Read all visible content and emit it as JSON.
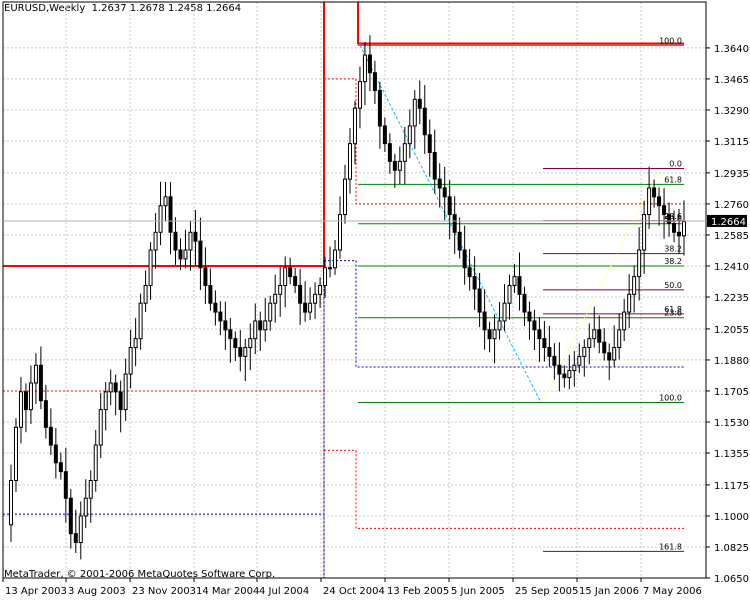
{
  "header": {
    "symbol": "EURUSD",
    "timeframe": "Weekly",
    "open": "1.2637",
    "high": "1.2678",
    "low": "1.2458",
    "close": "1.2664"
  },
  "footer": {
    "copyright": "MetaTrader, © 2001-2006 MetaQuotes Software Corp."
  },
  "colors": {
    "background": "#ffffff",
    "grid": "#c8c8c8",
    "candle": "#000000",
    "price_tag": "#000000",
    "channel_red": "#ff0000",
    "channel_blue": "#0000c8",
    "fib_green": "#008000",
    "fib_brown": "#993300",
    "fib_purple": "#800040",
    "trend_cyan": "#00bfff",
    "trend_yellow": "#ffff80"
  },
  "chart_data": {
    "type": "candlestick",
    "instrument": "EURUSD",
    "period": "Weekly",
    "y_range": [
      1.065,
      1.382
    ],
    "y_ticks": [
      "1.3640",
      "1.3465",
      "1.3290",
      "1.3115",
      "1.2935",
      "1.2760",
      "1.2585",
      "1.2410",
      "1.2235",
      "1.2055",
      "1.1880",
      "1.1705",
      "1.1530",
      "1.1355",
      "1.1175",
      "1.1000",
      "1.0825",
      "1.0650"
    ],
    "x_ticks": [
      "13 Apr 2003",
      "3 Aug 2003",
      "23 Nov 2003",
      "14 Mar 2004",
      "4 Jul 2004",
      "24 Oct 2004",
      "13 Feb 2005",
      "5 Jun 2005",
      "25 Sep 2005",
      "15 Jan 2006",
      "7 May 2006"
    ],
    "current_price": "1.2664",
    "close_path_weekly": [
      1.095,
      1.12,
      1.15,
      1.17,
      1.16,
      1.175,
      1.185,
      1.165,
      1.15,
      1.14,
      1.13,
      1.125,
      1.11,
      1.09,
      1.085,
      1.1,
      1.11,
      1.12,
      1.14,
      1.16,
      1.17,
      1.175,
      1.17,
      1.16,
      1.18,
      1.195,
      1.2,
      1.22,
      1.23,
      1.25,
      1.26,
      1.275,
      1.28,
      1.26,
      1.25,
      1.245,
      1.25,
      1.26,
      1.255,
      1.24,
      1.23,
      1.22,
      1.215,
      1.21,
      1.205,
      1.2,
      1.195,
      1.19,
      1.195,
      1.2,
      1.21,
      1.205,
      1.21,
      1.22,
      1.225,
      1.23,
      1.24,
      1.235,
      1.23,
      1.22,
      1.215,
      1.22,
      1.225,
      1.23,
      1.24,
      1.24,
      1.25,
      1.27,
      1.29,
      1.31,
      1.33,
      1.345,
      1.36,
      1.35,
      1.34,
      1.32,
      1.31,
      1.3,
      1.295,
      1.3,
      1.31,
      1.32,
      1.335,
      1.33,
      1.315,
      1.305,
      1.29,
      1.285,
      1.28,
      1.27,
      1.26,
      1.25,
      1.24,
      1.235,
      1.228,
      1.215,
      1.205,
      1.2,
      1.205,
      1.21,
      1.22,
      1.23,
      1.235,
      1.225,
      1.215,
      1.21,
      1.205,
      1.2,
      1.195,
      1.19,
      1.185,
      1.18,
      1.178,
      1.182,
      1.185,
      1.19,
      1.195,
      1.2,
      1.205,
      1.198,
      1.192,
      1.188,
      1.195,
      1.205,
      1.215,
      1.225,
      1.235,
      1.25,
      1.27,
      1.285,
      1.28,
      1.275,
      1.27,
      1.265,
      1.26,
      1.258,
      1.266
    ],
    "fibonacci_levels": [
      {
        "label": "100.0",
        "price": 1.3655
      },
      {
        "label": "0.0",
        "price": 1.296
      },
      {
        "label": "61.8",
        "price": 1.287
      },
      {
        "label": "23.6",
        "price": 1.2665
      },
      {
        "label": "50.0",
        "price": 1.2648
      },
      {
        "label": "38.2",
        "price": 1.248
      },
      {
        "label": "38.2",
        "price": 1.241
      },
      {
        "label": "50.0",
        "price": 1.2275
      },
      {
        "label": "61.8",
        "price": 1.214
      },
      {
        "label": "23.6",
        "price": 1.2118
      },
      {
        "label": "100.0",
        "price": 1.164
      },
      {
        "label": "161.8",
        "price": 1.08
      }
    ],
    "grid": true
  }
}
